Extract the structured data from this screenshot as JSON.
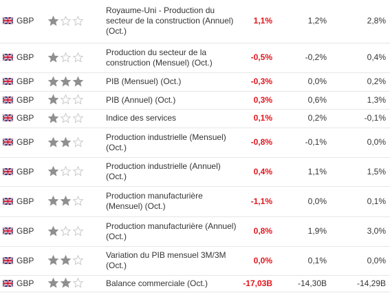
{
  "colors": {
    "actual": "#e3131b",
    "star_filled": "#8f8f8f",
    "star_empty": "#c8c8c8"
  },
  "rows": [
    {
      "currency": "GBP",
      "importance": 1,
      "event": "Royaume-Uni - Production du secteur de la construction (Annuel) (Oct.)",
      "actual": "1,1%",
      "forecast": "1,2%",
      "previous": "2,8%"
    },
    {
      "currency": "GBP",
      "importance": 1,
      "event": "Production du secteur de la construction (Mensuel) (Oct.)",
      "actual": "-0,5%",
      "forecast": "-0,2%",
      "previous": "0,4%"
    },
    {
      "currency": "GBP",
      "importance": 3,
      "event": "PIB (Mensuel) (Oct.)",
      "actual": "-0,3%",
      "forecast": "0,0%",
      "previous": "0,2%"
    },
    {
      "currency": "GBP",
      "importance": 1,
      "event": "PIB (Annuel) (Oct.)",
      "actual": "0,3%",
      "forecast": "0,6%",
      "previous": "1,3%"
    },
    {
      "currency": "GBP",
      "importance": 1,
      "event": "Indice des services",
      "actual": "0,1%",
      "forecast": "0,2%",
      "previous": "-0,1%"
    },
    {
      "currency": "GBP",
      "importance": 2,
      "event": "Production industrielle (Mensuel) (Oct.)",
      "actual": "-0,8%",
      "forecast": "-0,1%",
      "previous": "0,0%"
    },
    {
      "currency": "GBP",
      "importance": 1,
      "event": "Production industrielle (Annuel) (Oct.)",
      "actual": "0,4%",
      "forecast": "1,1%",
      "previous": "1,5%"
    },
    {
      "currency": "GBP",
      "importance": 2,
      "event": "Production manufacturière (Mensuel) (Oct.)",
      "actual": "-1,1%",
      "forecast": "0,0%",
      "previous": "0,1%"
    },
    {
      "currency": "GBP",
      "importance": 1,
      "event": "Production manufacturière (Annuel) (Oct.)",
      "actual": "0,8%",
      "forecast": "1,9%",
      "previous": "3,0%"
    },
    {
      "currency": "GBP",
      "importance": 2,
      "event": "Variation du PIB mensuel 3M/3M (Oct.)",
      "actual": "0,0%",
      "forecast": "0,1%",
      "previous": "0,0%"
    },
    {
      "currency": "GBP",
      "importance": 2,
      "event": "Balance commerciale (Oct.)",
      "actual": "-17,03B",
      "forecast": "-14,30B",
      "previous": "-14,29B"
    }
  ]
}
